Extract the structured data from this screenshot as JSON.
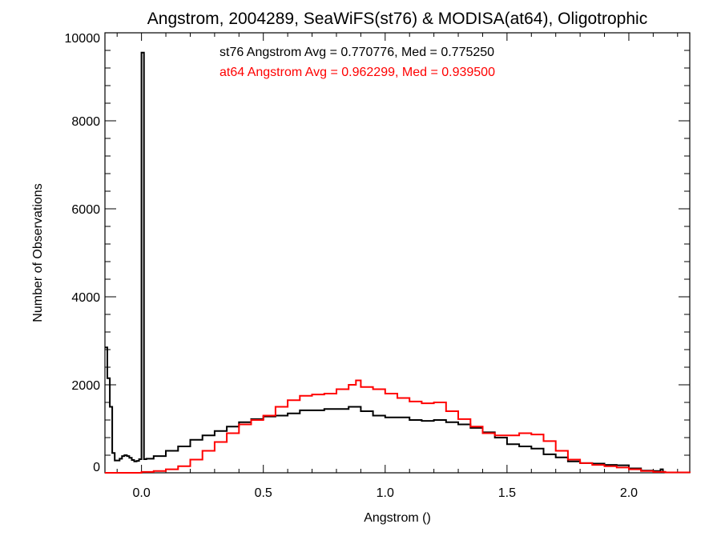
{
  "chart_data": {
    "type": "line",
    "title": "Angstrom, 2004289, SeaWiFS(st76) & MODISA(at64), Oligotrophic",
    "xlabel": "Angstrom ()",
    "ylabel": "Number of Observations",
    "xlim": [
      -0.15,
      2.25
    ],
    "ylim": [
      0,
      10000
    ],
    "xticks": [
      0.0,
      0.5,
      1.0,
      1.5,
      2.0
    ],
    "xtick_labels": [
      "0.0",
      "0.5",
      "1.0",
      "1.5",
      "2.0"
    ],
    "yticks": [
      0,
      2000,
      4000,
      6000,
      8000,
      10000
    ],
    "ytick_labels": [
      "0",
      "2000",
      "4000",
      "6000",
      "8000",
      "10000"
    ],
    "grid": false,
    "step": true,
    "annotations": [
      {
        "text": "st76 Angstrom Avg = 0.770776, Med = 0.775250",
        "color": "#000000"
      },
      {
        "text": "at64 Angstrom Avg = 0.962299, Med = 0.939500",
        "color": "#ff0000"
      }
    ],
    "series": [
      {
        "color": "#000000",
        "x": [
          -0.15,
          -0.14,
          -0.13,
          -0.12,
          -0.11,
          -0.1,
          -0.09,
          -0.08,
          -0.07,
          -0.06,
          -0.05,
          -0.04,
          -0.03,
          -0.02,
          -0.01,
          0.0,
          0.01,
          0.02,
          0.05,
          0.1,
          0.15,
          0.2,
          0.25,
          0.3,
          0.35,
          0.4,
          0.45,
          0.5,
          0.55,
          0.6,
          0.65,
          0.7,
          0.75,
          0.8,
          0.85,
          0.9,
          0.95,
          1.0,
          1.05,
          1.1,
          1.15,
          1.2,
          1.25,
          1.3,
          1.35,
          1.4,
          1.45,
          1.5,
          1.55,
          1.6,
          1.65,
          1.7,
          1.75,
          1.8,
          1.85,
          1.9,
          1.95,
          2.0,
          2.05,
          2.1,
          2.13,
          2.14
        ],
        "y": [
          2850,
          2150,
          1500,
          450,
          280,
          280,
          320,
          380,
          400,
          380,
          340,
          290,
          260,
          270,
          310,
          9550,
          310,
          320,
          380,
          500,
          600,
          750,
          850,
          950,
          1050,
          1150,
          1220,
          1280,
          1300,
          1350,
          1420,
          1420,
          1450,
          1450,
          1500,
          1400,
          1300,
          1260,
          1260,
          1200,
          1180,
          1200,
          1150,
          1100,
          1020,
          920,
          800,
          650,
          600,
          550,
          420,
          350,
          260,
          220,
          210,
          180,
          170,
          100,
          50,
          40,
          80,
          20
        ]
      },
      {
        "color": "#ff0000",
        "x": [
          -0.15,
          0.0,
          0.05,
          0.1,
          0.15,
          0.2,
          0.25,
          0.3,
          0.35,
          0.4,
          0.45,
          0.5,
          0.55,
          0.6,
          0.65,
          0.7,
          0.75,
          0.8,
          0.85,
          0.88,
          0.9,
          0.95,
          1.0,
          1.05,
          1.1,
          1.15,
          1.2,
          1.25,
          1.3,
          1.35,
          1.4,
          1.45,
          1.5,
          1.55,
          1.6,
          1.65,
          1.7,
          1.75,
          1.8,
          1.85,
          1.9,
          1.95,
          2.0,
          2.05,
          2.1,
          2.15,
          2.25
        ],
        "y": [
          0,
          20,
          40,
          80,
          150,
          300,
          500,
          700,
          900,
          1100,
          1200,
          1300,
          1500,
          1650,
          1750,
          1780,
          1800,
          1900,
          2000,
          2100,
          1950,
          1900,
          1800,
          1700,
          1620,
          1580,
          1600,
          1400,
          1220,
          1050,
          900,
          850,
          850,
          900,
          870,
          720,
          500,
          300,
          220,
          180,
          150,
          120,
          80,
          40,
          20,
          10,
          0
        ]
      }
    ]
  }
}
